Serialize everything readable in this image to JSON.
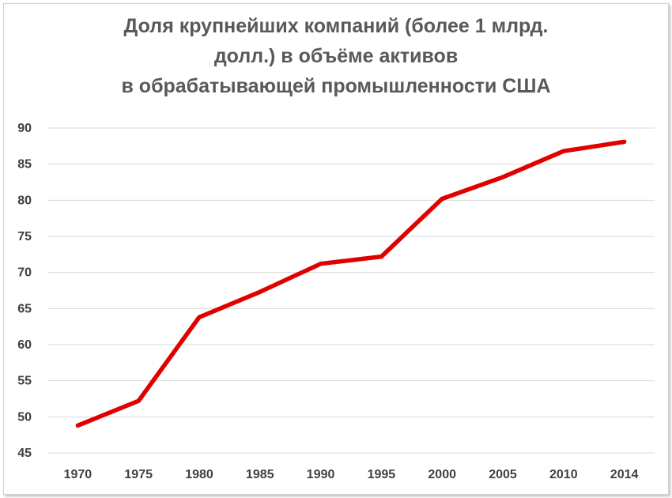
{
  "chart_data": {
    "type": "line",
    "title_lines": [
      "Доля крупнейших компаний (более 1 млрд.",
      "долл.) в объёме активов",
      "в обрабатывающей промышленности США"
    ],
    "xlabel": "",
    "ylabel": "",
    "categories": [
      "1970",
      "1975",
      "1980",
      "1985",
      "1990",
      "1995",
      "2000",
      "2005",
      "2010",
      "2014"
    ],
    "series": [
      {
        "values": [
          48.8,
          52.2,
          63.8,
          67.3,
          71.2,
          72.2,
          80.2,
          83.2,
          86.8,
          88.1
        ]
      }
    ],
    "ylim": [
      45,
      90
    ],
    "yticks": [
      "45",
      "50",
      "55",
      "60",
      "65",
      "70",
      "75",
      "80",
      "85",
      "90"
    ],
    "grid": true,
    "legend": "none",
    "line_color": "#e00000",
    "grid_color": "#d9d9d9"
  }
}
